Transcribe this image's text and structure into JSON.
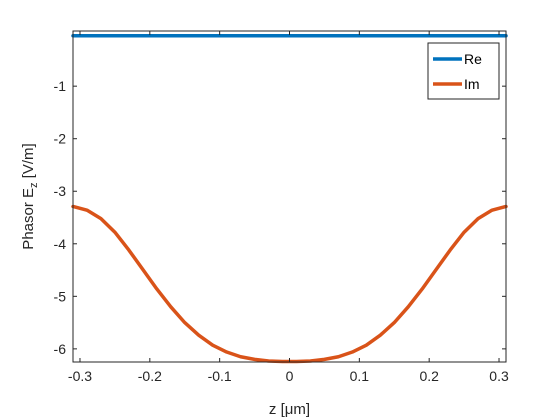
{
  "chart_data": {
    "type": "line",
    "xlabel": "z [μm]",
    "ylabel_main": "Phasor E",
    "ylabel_sub": "z",
    "ylabel_unit": " [V/m]",
    "xlim": [
      -0.31,
      0.31
    ],
    "ylim": [
      -6.25,
      0.05
    ],
    "xticks": [
      -0.3,
      -0.2,
      -0.1,
      0,
      0.1,
      0.2,
      0.3
    ],
    "xtick_labels": [
      "-0.3",
      "-0.2",
      "-0.1",
      "0",
      "0.1",
      "0.2",
      "0.3"
    ],
    "yticks": [
      -1,
      -2,
      -3,
      -4,
      -5,
      -6
    ],
    "ytick_labels": [
      "-1",
      "-2",
      "-3",
      "-4",
      "-5",
      "-6"
    ],
    "grid": false,
    "legend_position": "top-right",
    "x": [
      -0.31,
      -0.29,
      -0.27,
      -0.25,
      -0.23,
      -0.21,
      -0.19,
      -0.17,
      -0.15,
      -0.13,
      -0.11,
      -0.09,
      -0.07,
      -0.05,
      -0.03,
      -0.01,
      0.01,
      0.03,
      0.05,
      0.07,
      0.09,
      0.11,
      0.13,
      0.15,
      0.17,
      0.19,
      0.21,
      0.23,
      0.25,
      0.27,
      0.29,
      0.31
    ],
    "series": [
      {
        "name": "Re",
        "color": "#0072BD",
        "values": [
          -0.04,
          -0.04,
          -0.04,
          -0.04,
          -0.04,
          -0.04,
          -0.04,
          -0.04,
          -0.04,
          -0.04,
          -0.04,
          -0.04,
          -0.04,
          -0.04,
          -0.04,
          -0.04,
          -0.04,
          -0.04,
          -0.04,
          -0.04,
          -0.04,
          -0.04,
          -0.04,
          -0.04,
          -0.04,
          -0.04,
          -0.04,
          -0.04,
          -0.04,
          -0.04,
          -0.04,
          -0.04
        ]
      },
      {
        "name": "Im",
        "color": "#D95319",
        "values": [
          -3.29,
          -3.36,
          -3.52,
          -3.78,
          -4.12,
          -4.49,
          -4.86,
          -5.2,
          -5.5,
          -5.74,
          -5.93,
          -6.06,
          -6.15,
          -6.2,
          -6.23,
          -6.24,
          -6.24,
          -6.23,
          -6.2,
          -6.15,
          -6.06,
          -5.93,
          -5.74,
          -5.5,
          -5.2,
          -4.86,
          -4.49,
          -4.12,
          -3.78,
          -3.52,
          -3.36,
          -3.29
        ]
      }
    ]
  }
}
